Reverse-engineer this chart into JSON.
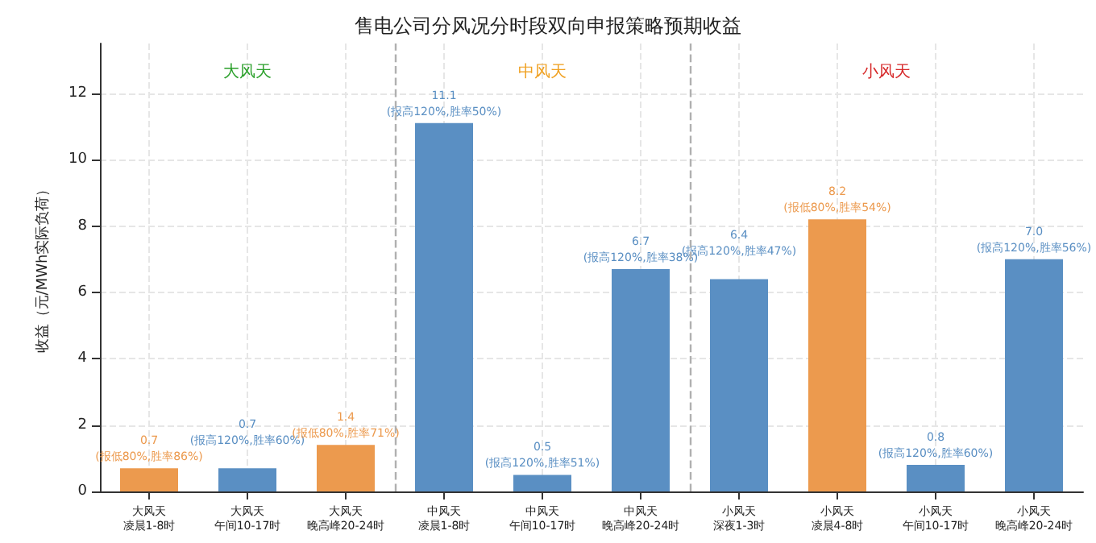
{
  "chart_data": {
    "type": "bar",
    "title": "售电公司分风况分时段双向申报策略预期收益",
    "ylabel": "收益（元/MWh实际负荷）",
    "categories": [
      "大风天凌晨1-8时",
      "大风天午间10-17时",
      "大风天晚高峰20-24时",
      "中风天凌晨1-8时",
      "中风天午间10-17时",
      "中风天晚高峰20-24时",
      "小风天深夜1-3时",
      "小风天凌晨4-8时",
      "小风天午间10-17时",
      "小风天晚高峰20-24时"
    ],
    "values": [
      0.7,
      0.7,
      1.4,
      11.1,
      0.5,
      6.7,
      6.4,
      8.2,
      0.8,
      7.0
    ],
    "colors": [
      "#ec9a4e",
      "#5a8fc3",
      "#ec9a4e",
      "#5a8fc3",
      "#5a8fc3",
      "#5a8fc3",
      "#5a8fc3",
      "#ec9a4e",
      "#5a8fc3",
      "#5a8fc3"
    ],
    "value_labels": [
      "0.7\n(报低80%,胜率86%)",
      "0.7\n(报高120%,胜率60%)",
      "1.4\n(报低80%,胜率71%)",
      "11.1\n(报高120%,胜率50%)",
      "0.5\n(报高120%,胜率51%)",
      "6.7\n(报高120%,胜率38%)",
      "6.4\n(报高120%,胜率47%)",
      "8.2\n(报低80%,胜率54%)",
      "0.8\n(报高120%,胜率60%)",
      "7.0\n(报高120%,胜率56%)"
    ],
    "ylim": [
      0,
      13.5
    ],
    "yticks": [
      0,
      2,
      4,
      6,
      8,
      10,
      12
    ],
    "grid": true,
    "annotations": [
      "大风天",
      "中风天",
      "小风天"
    ]
  }
}
